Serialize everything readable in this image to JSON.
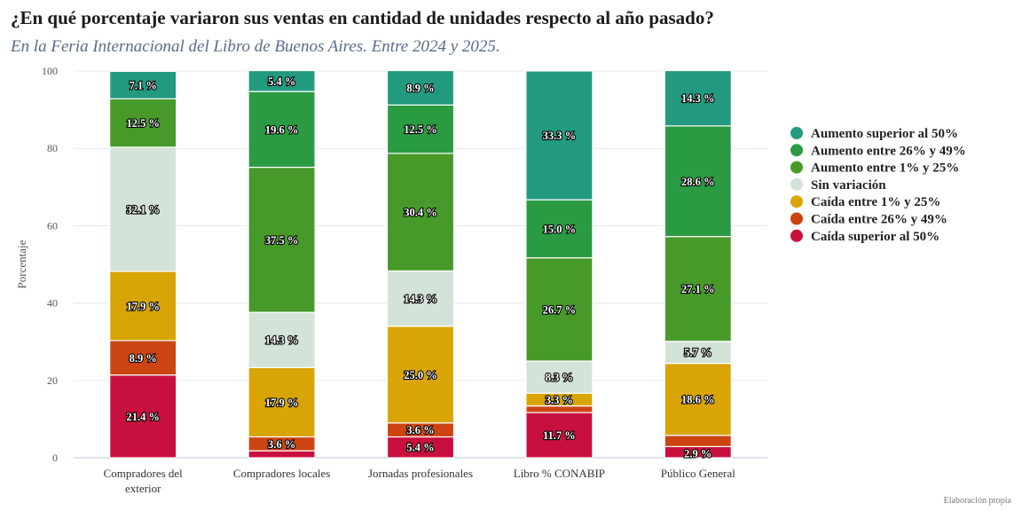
{
  "chart_data": {
    "type": "bar",
    "stacked": true,
    "title": "¿En qué porcentaje variaron sus ventas en cantidad de unidades respecto al año pasado?",
    "subtitle": "En la Feria Internacional del Libro de Buenos Aires. Entre 2024 y 2025.",
    "ylabel": "Porcentaje",
    "xlabel": "",
    "ylim": [
      0,
      100
    ],
    "yticks": [
      0,
      20,
      40,
      60,
      80,
      100
    ],
    "grid": true,
    "legend_position": "right",
    "categories": [
      [
        "Compradores del",
        "exterior"
      ],
      [
        "Compradores locales"
      ],
      [
        "Jornadas profesionales"
      ],
      [
        "Libro % CONABIP"
      ],
      [
        "Público General"
      ]
    ],
    "series": [
      {
        "name": "Caída superior al 50%",
        "color": "#c8103e",
        "values": [
          21.4,
          1.8,
          5.4,
          11.7,
          2.9
        ],
        "labels": [
          "21.4 %",
          "",
          "5.4 %",
          "11.7 %",
          ""
        ]
      },
      {
        "name": "Caída entre 26% y 49%",
        "color": "#cc4411",
        "values": [
          8.9,
          3.6,
          3.6,
          1.7,
          2.9
        ],
        "labels": [
          "8.9 %",
          "3.6 %",
          "3.6 %",
          "",
          "2.9 %"
        ]
      },
      {
        "name": "Caída entre 1% y 25%",
        "color": "#d9a406",
        "values": [
          17.9,
          17.9,
          25.0,
          3.3,
          18.6
        ],
        "labels": [
          "17.9 %",
          "17.9 %",
          "25.0 %",
          "3.3 %",
          "18.6 %"
        ]
      },
      {
        "name": "Sin variación",
        "color": "#d3e3d7",
        "values": [
          32.1,
          14.3,
          14.3,
          8.3,
          5.7
        ],
        "labels": [
          "32.1 %",
          "14.3 %",
          "14.3 %",
          "8.3 %",
          "5.7 %"
        ]
      },
      {
        "name": "Aumento entre 1% y 25%",
        "color": "#479a2a",
        "values": [
          12.5,
          37.5,
          30.4,
          26.7,
          27.1
        ],
        "labels": [
          "12.5 %",
          "37.5 %",
          "30.4 %",
          "26.7 %",
          "27.1 %"
        ]
      },
      {
        "name": "Aumento entre 26% y 49%",
        "color": "#2b9b43",
        "values": [
          0,
          19.6,
          12.5,
          15.0,
          28.6
        ],
        "labels": [
          "",
          "19.6 %",
          "12.5 %",
          "15.0 %",
          "28.6 %"
        ]
      },
      {
        "name": "Aumento superior al 50%",
        "color": "#229a7f",
        "values": [
          7.1,
          5.4,
          8.9,
          33.3,
          14.3
        ],
        "labels": [
          "7.1 %",
          "5.4 %",
          "8.9 %",
          "33.3 %",
          "14.3 %"
        ]
      }
    ],
    "legend_order": [
      "Aumento superior al 50%",
      "Aumento entre 26% y 49%",
      "Aumento entre 1% y 25%",
      "Sin variación",
      "Caída entre 1% y 25%",
      "Caída entre 26% y 49%",
      "Caída superior al 50%"
    ]
  },
  "credit": "Elaboración propia"
}
